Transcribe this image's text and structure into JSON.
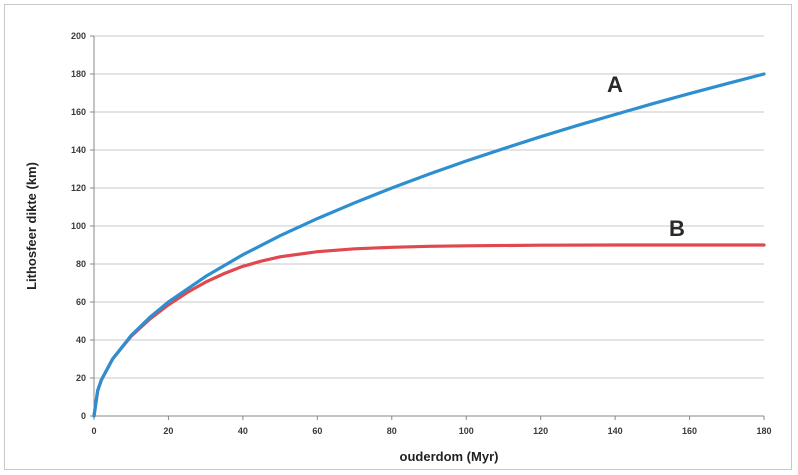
{
  "chart_data": {
    "type": "line",
    "title": "",
    "xlabel": "ouderdom (Myr)",
    "ylabel": "Lithosfeer dikte (km)",
    "xlim": [
      0,
      180
    ],
    "ylim": [
      0,
      200
    ],
    "xticks": [
      0,
      20,
      40,
      60,
      80,
      100,
      120,
      140,
      160,
      180
    ],
    "yticks": [
      0,
      20,
      40,
      60,
      80,
      100,
      120,
      140,
      160,
      180,
      200
    ],
    "grid": true,
    "series": [
      {
        "name": "A",
        "color": "#2e8fd0",
        "x": [
          0,
          1,
          2,
          5,
          10,
          15,
          20,
          30,
          40,
          50,
          60,
          70,
          80,
          90,
          100,
          110,
          120,
          130,
          140,
          150,
          160,
          170,
          180
        ],
        "y": [
          0,
          13.4,
          19,
          30,
          42.4,
          51.9,
          60,
          73.5,
          84.9,
          94.9,
          103.9,
          112.2,
          120,
          127.3,
          134.2,
          140.7,
          147,
          153,
          158.7,
          164.3,
          169.7,
          174.9,
          180
        ]
      },
      {
        "name": "B",
        "color": "#e0484f",
        "x": [
          0,
          1,
          2,
          5,
          10,
          15,
          20,
          25,
          30,
          35,
          40,
          45,
          50,
          60,
          70,
          80,
          90,
          100,
          120,
          140,
          160,
          180
        ],
        "y": [
          0,
          13.4,
          19,
          30,
          42,
          51,
          58.5,
          65,
          70.5,
          75,
          78.8,
          81.5,
          83.8,
          86.5,
          88,
          88.8,
          89.3,
          89.6,
          89.9,
          90,
          90,
          90
        ]
      }
    ]
  }
}
